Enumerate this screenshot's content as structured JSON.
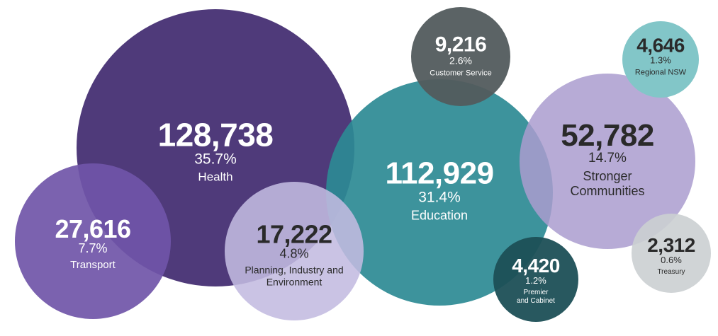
{
  "chart_data": {
    "type": "bubble",
    "bubbles": [
      {
        "value": "128,738",
        "percent": "35.7%",
        "name": "Health",
        "color": "#4f3a7a",
        "text_color": "#ffffff",
        "opacity": 1
      },
      {
        "value": "112,929",
        "percent": "31.4%",
        "name": "Education",
        "color": "#2c8a94",
        "text_color": "#ffffff",
        "opacity": 0.92
      },
      {
        "value": "52,782",
        "percent": "14.7%",
        "name": "Stronger\nCommunities",
        "color": "#aa9ccf",
        "text_color": "#2a2a2a",
        "opacity": 0.85
      },
      {
        "value": "27,616",
        "percent": "7.7%",
        "name": "Transport",
        "color": "#7055a8",
        "text_color": "#ffffff",
        "opacity": 0.92
      },
      {
        "value": "17,222",
        "percent": "4.8%",
        "name": "Planning, Industry and\nEnvironment",
        "color": "#c3bbe0",
        "text_color": "#2a2a2a",
        "opacity": 0.88
      },
      {
        "value": "9,216",
        "percent": "2.6%",
        "name": "Customer Service",
        "color": "#525b5d",
        "text_color": "#ffffff",
        "opacity": 0.95
      },
      {
        "value": "4,646",
        "percent": "1.3%",
        "name": "Regional NSW",
        "color": "#82c6c8",
        "text_color": "#2a2a2a",
        "opacity": 1
      },
      {
        "value": "4,420",
        "percent": "1.2%",
        "name": "Premier\nand Cabinet",
        "color": "#1c4f56",
        "text_color": "#ffffff",
        "opacity": 0.95
      },
      {
        "value": "2,312",
        "percent": "0.6%",
        "name": "Treasury",
        "color": "#cbcfd1",
        "text_color": "#2a2a2a",
        "opacity": 0.9
      }
    ]
  }
}
